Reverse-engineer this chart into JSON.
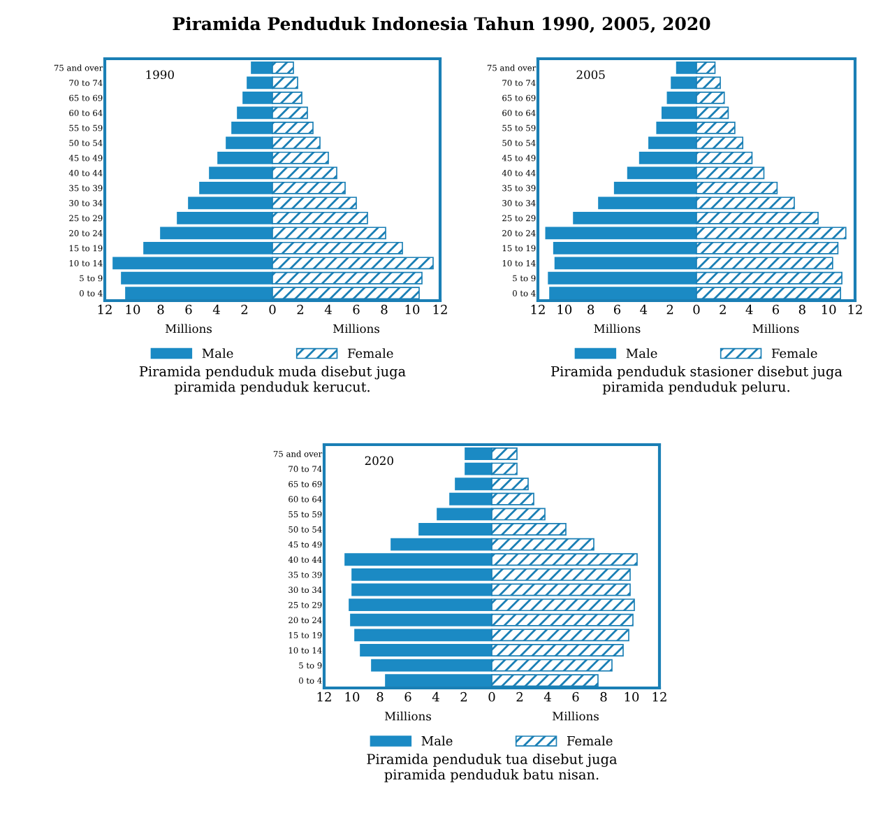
{
  "chart_data": [
    {
      "type": "other",
      "title": "Piramida Penduduk Indonesia Tahun 1990, 2005, 2020"
    },
    {
      "type": "bar",
      "orientation": "horizontal",
      "stacked": true,
      "title": "1990",
      "xlabel": "Millions",
      "legend": "bottom",
      "annotations": [
        "Millions",
        "Piramida penduduk muda disebut juga piramida penduduk kerucut."
      ],
      "categories": [
        "75 and over",
        "70 to 74",
        "65 to 69",
        "60 to 64",
        "55 to 59",
        "50 to 54",
        "45 to 49",
        "40 to 44",
        "35 to 39",
        "30 to 34",
        "25 to 29",
        "20 to 24",
        "15 to 19",
        "10 to 14",
        "5 to 9",
        "0 to 4"
      ],
      "xlim": [
        -12,
        12
      ],
      "xticks": [
        {
          "value": -12,
          "label": "12"
        },
        {
          "value": -10,
          "label": "10"
        },
        {
          "value": -8,
          "label": "8"
        },
        {
          "value": -6,
          "label": "6"
        },
        {
          "value": -4,
          "label": "4"
        },
        {
          "value": -2,
          "label": "2"
        },
        0,
        2,
        4,
        6,
        8,
        10,
        12
      ],
      "series": [
        {
          "name": "Male",
          "color": "#1b8ac4",
          "values": [
            -1.5,
            -1.8,
            -2.1,
            -2.5,
            -2.9,
            -3.3,
            -3.9,
            -4.5,
            -5.2,
            -6.0,
            -6.8,
            -8.0,
            -9.2,
            -11.4,
            -10.8,
            -10.5
          ]
        },
        {
          "name": "Female",
          "color": "#1a7fb5",
          "values": [
            1.5,
            1.8,
            2.1,
            2.5,
            2.9,
            3.4,
            4.0,
            4.6,
            5.2,
            6.0,
            6.8,
            8.1,
            9.3,
            11.5,
            10.7,
            10.5
          ]
        }
      ]
    },
    {
      "type": "bar",
      "orientation": "horizontal",
      "stacked": true,
      "title": "2005",
      "xlabel": "Millions",
      "legend": "bottom",
      "annotations": [
        "Millions",
        "Piramida penduduk stasioner disebut juga piramida penduduk peluru."
      ],
      "categories": [
        "75 and over",
        "70 to 74",
        "65 to 69",
        "60 to 64",
        "55 to 59",
        "50 to 54",
        "45 to 49",
        "40 to 44",
        "35 to 39",
        "30 to 34",
        "25 to 29",
        "20 to 24",
        "15 to 19",
        "10 to 14",
        "5 to 9",
        "0 to 4"
      ],
      "xlim": [
        -12,
        12
      ],
      "xticks": [
        {
          "value": -12,
          "label": "12"
        },
        {
          "value": -10,
          "label": "10"
        },
        {
          "value": -8,
          "label": "8"
        },
        {
          "value": -6,
          "label": "6"
        },
        {
          "value": -4,
          "label": "4"
        },
        {
          "value": -2,
          "label": "2"
        },
        0,
        2,
        4,
        6,
        8,
        10,
        12
      ],
      "series": [
        {
          "name": "Male",
          "color": "#1b8ac4",
          "values": [
            -1.5,
            -1.9,
            -2.2,
            -2.6,
            -3.0,
            -3.6,
            -4.3,
            -5.2,
            -6.2,
            -7.4,
            -9.3,
            -11.4,
            -10.8,
            -10.7,
            -11.2,
            -11.1
          ]
        },
        {
          "name": "Female",
          "color": "#1a7fb5",
          "values": [
            1.4,
            1.8,
            2.1,
            2.4,
            2.9,
            3.5,
            4.2,
            5.1,
            6.1,
            7.4,
            9.2,
            11.3,
            10.7,
            10.3,
            11.0,
            10.9
          ]
        }
      ]
    },
    {
      "type": "bar",
      "orientation": "horizontal",
      "stacked": true,
      "title": "2020",
      "xlabel": "Millions",
      "legend": "bottom",
      "annotations": [
        "Millions",
        "Piramida penduduk tua disebut juga piramida penduduk batu nisan."
      ],
      "categories": [
        "75 and over",
        "70 to 74",
        "65 to 69",
        "60 to 64",
        "55 to 59",
        "50 to 54",
        "45 to 49",
        "40 to 44",
        "35 to 39",
        "30 to 34",
        "25 to 29",
        "20 to 24",
        "15 to 19",
        "10 to 14",
        "5 to 9",
        "0 to 4"
      ],
      "xlim": [
        -12,
        12
      ],
      "xticks": [
        {
          "value": -12,
          "label": "12"
        },
        {
          "value": -10,
          "label": "10"
        },
        {
          "value": -8,
          "label": "8"
        },
        {
          "value": -6,
          "label": "6"
        },
        {
          "value": -4,
          "label": "4"
        },
        {
          "value": -2,
          "label": "2"
        },
        0,
        2,
        4,
        6,
        8,
        10,
        12
      ],
      "series": [
        {
          "name": "Male",
          "color": "#1b8ac4",
          "values": [
            -1.9,
            -1.9,
            -2.6,
            -3.0,
            -3.9,
            -5.2,
            -7.2,
            -10.5,
            -10.0,
            -10.0,
            -10.2,
            -10.1,
            -9.8,
            -9.4,
            -8.6,
            -7.6
          ]
        },
        {
          "name": "Female",
          "color": "#1a7fb5",
          "values": [
            1.8,
            1.8,
            2.6,
            3.0,
            3.8,
            5.3,
            7.3,
            10.4,
            9.9,
            9.9,
            10.2,
            10.1,
            9.8,
            9.4,
            8.6,
            7.6
          ]
        }
      ]
    }
  ]
}
